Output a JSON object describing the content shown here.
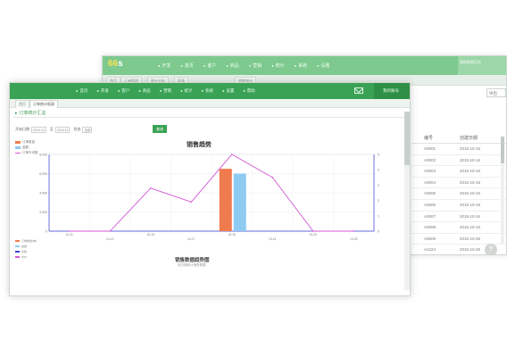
{
  "back_window": {
    "logo": "66",
    "logo_suffix": "s",
    "menu": [
      "开发",
      "首页",
      "客户",
      "商品",
      "营销",
      "统计",
      "系统",
      "设置"
    ],
    "right_label": "我的商家后台",
    "tabs": [
      "首页",
      "订单管理",
      "统计分析",
      "报表",
      "销售统计"
    ],
    "tool_label": "导出",
    "table_headers": [
      "编号",
      "创建日期"
    ],
    "table_rows": [
      [
        "A0001",
        "2015-10-16"
      ],
      [
        "A0002",
        "2015-10-16"
      ],
      [
        "A0003",
        "2015-10-16"
      ],
      [
        "A0004",
        "2015-10-16"
      ],
      [
        "A0005",
        "2015-10-16"
      ],
      [
        "A0006",
        "2015-10-16"
      ],
      [
        "A0007",
        "2015-10-16"
      ],
      [
        "A0008",
        "2015-10-16"
      ],
      [
        "A0009",
        "2015-10-26"
      ],
      [
        "A1224",
        "2015-10-26"
      ],
      [
        "2",
        "2015-10-22"
      ],
      [
        "A1225",
        "2015-10-22"
      ]
    ],
    "float_label": "?"
  },
  "front_window": {
    "menu": [
      "首页",
      "开发",
      "客户",
      "商品",
      "营销",
      "统计",
      "系统",
      "设置",
      "帮助"
    ],
    "user_label": "我的账号",
    "tabs": [
      "首页",
      "订单统计报表"
    ],
    "section_title": "订单统计汇总",
    "filters": {
      "start_label": "开始日期",
      "start_value": "2015-10",
      "end_label": "至",
      "end_value": "2015-11",
      "status_label": "状态",
      "status_value": "全部",
      "query_label": "查询"
    },
    "legend_top": [
      "订单数量",
      "金额",
      "订单平均数"
    ],
    "chart_title": "销售趋势",
    "legend_bottom": [
      "订单数量(单)",
      "金额",
      "件数",
      "均价"
    ],
    "sub_title": "销售数据趋势图",
    "sub_sub": "按日期统计销售数据"
  },
  "colors": {
    "nav_green": "#3aa255",
    "bar_orange": "#f07b4e",
    "bar_blue": "#8ecbf2",
    "line_magenta": "#d55ad6",
    "axis_blue": "#3a3fd0"
  },
  "chart_data": {
    "type": "bar",
    "title": "销售趋势",
    "categories": [
      "10-11",
      "10-13",
      "10-15",
      "10-17",
      "10-19",
      "10-21",
      "10-23",
      "10-25"
    ],
    "yleft_ticks": [
      "8,000",
      "6,000",
      "4,000",
      "2,000",
      "0"
    ],
    "yright_ticks": [
      "5",
      "4",
      "3",
      "2",
      "1",
      "0"
    ],
    "ylim_left": [
      0,
      8000
    ],
    "ylim_right": [
      0,
      5
    ],
    "series": [
      {
        "name": "订单数量",
        "kind": "bar",
        "color": "#f07b4e",
        "values": [
          0,
          0,
          0,
          0,
          6500,
          0,
          0,
          0
        ]
      },
      {
        "name": "金额",
        "kind": "bar",
        "color": "#8ecbf2",
        "values": [
          0,
          0,
          0,
          0,
          6000,
          0,
          0,
          0
        ]
      },
      {
        "name": "订单平均数",
        "kind": "line",
        "axis": "right",
        "color": "#d55ad6",
        "values": [
          0,
          0,
          2.8,
          1.9,
          5.0,
          3.5,
          0,
          0
        ]
      }
    ],
    "grid": true,
    "legend": "top-left"
  }
}
